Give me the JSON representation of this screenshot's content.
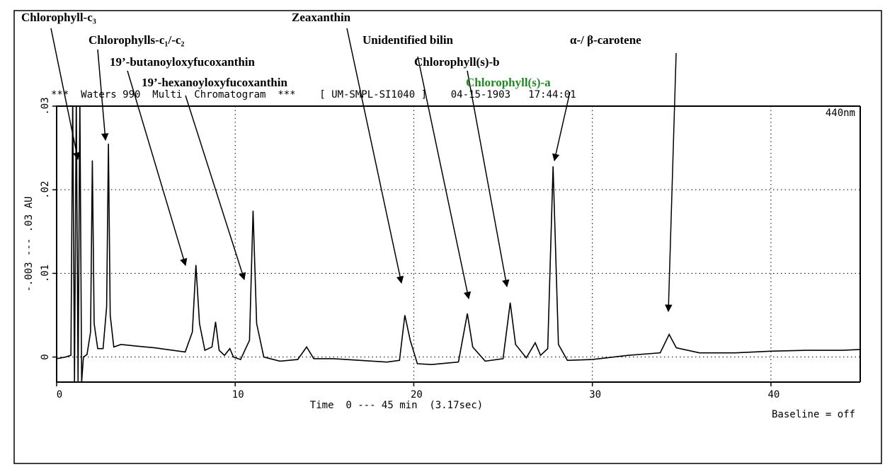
{
  "chart_data": {
    "type": "line",
    "header": "***  Waters 990  Multi  Chromatogram  ***    [ UM-SMPL-SI1040 ]    04-15-1903   17:44:01",
    "wavelength": "440nm",
    "baseline_note": "Baseline = off",
    "x_label": "Time  0 --- 45 min  (3.17sec)",
    "y_label": "-.003 --- .03 AU",
    "xlim": [
      0,
      45
    ],
    "xticks": [
      0,
      10,
      20,
      30,
      40
    ],
    "ylim": [
      -0.003,
      0.03
    ],
    "yticks": [
      0,
      {
        "value": 0.01,
        "label": ".01"
      },
      {
        "value": 0.02,
        "label": ".02"
      },
      {
        "value": 0.03,
        "label": ".03"
      }
    ],
    "grid": true,
    "x": [
      0,
      0.5,
      0.8,
      0.9,
      1.0,
      1.1,
      1.2,
      1.3,
      1.4,
      1.5,
      1.7,
      1.9,
      2.0,
      2.1,
      2.3,
      2.6,
      2.8,
      2.9,
      3.0,
      3.2,
      3.6,
      4.5,
      5.5,
      6.5,
      7.2,
      7.6,
      7.8,
      8.0,
      8.3,
      8.7,
      8.9,
      9.1,
      9.4,
      9.7,
      9.9,
      10.3,
      10.8,
      11.0,
      11.2,
      11.6,
      12.5,
      13.5,
      14.0,
      14.4,
      15.5,
      17,
      18.5,
      19.2,
      19.5,
      19.8,
      20.2,
      21,
      22.5,
      23.0,
      23.3,
      24,
      25.0,
      25.4,
      25.7,
      26.3,
      26.8,
      27.1,
      27.5,
      27.8,
      28.1,
      28.6,
      30,
      32,
      33.8,
      34.3,
      34.7,
      36,
      38,
      40,
      42,
      44,
      45
    ],
    "series": [
      {
        "color": "#000000",
        "values": [
          -0.0002,
          0.0,
          0.0002,
          0.031,
          -0.003,
          0.031,
          -0.003,
          0.031,
          -0.003,
          0.0,
          0.0003,
          0.003,
          0.0235,
          0.004,
          0.001,
          0.001,
          0.006,
          0.0255,
          0.005,
          0.0012,
          0.0015,
          0.0013,
          0.0011,
          0.0008,
          0.0006,
          0.003,
          0.011,
          0.004,
          0.0008,
          0.0012,
          0.0042,
          0.0008,
          0.0002,
          0.001,
          0.0,
          -0.0003,
          0.002,
          0.0175,
          0.004,
          0.0,
          -0.0005,
          -0.0003,
          0.0012,
          -0.0002,
          -0.0002,
          -0.0004,
          -0.0006,
          -0.0004,
          0.005,
          0.002,
          -0.0008,
          -0.0009,
          -0.0006,
          0.0052,
          0.0012,
          -0.0005,
          -0.0002,
          0.0065,
          0.0015,
          -0.0001,
          0.0017,
          0.0002,
          0.001,
          0.0228,
          0.0015,
          -0.0004,
          -0.0003,
          0.0002,
          0.0005,
          0.0027,
          0.0011,
          0.0005,
          0.0005,
          0.0007,
          0.0008,
          0.0008,
          0.0009
        ]
      }
    ],
    "annotations": [
      {
        "text": "Chlorophyll-c₃",
        "color": "#000000"
      },
      {
        "text": "Chlorophylls-c₁/-c₂",
        "color": "#000000"
      },
      {
        "text": "19’-butanoyloxyfucoxanthin",
        "color": "#000000"
      },
      {
        "text": "19’-hexanoyloxyfucoxanthin",
        "color": "#000000"
      },
      {
        "text": "Zeaxanthin",
        "color": "#000000"
      },
      {
        "text": "Unidentified bilin",
        "color": "#000000"
      },
      {
        "text": "Chlorophyll(s)-b",
        "color": "#000000"
      },
      {
        "text": "Chlorophyll(s)-a",
        "color": "#1f8a1f"
      },
      {
        "text": "α-/ β-carotene",
        "color": "#000000"
      }
    ]
  }
}
